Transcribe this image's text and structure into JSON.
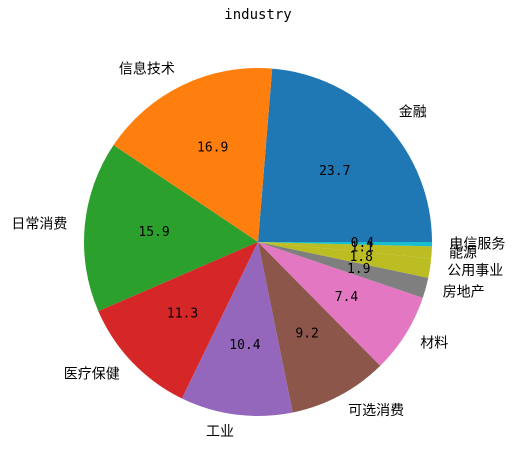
{
  "chart_data": {
    "type": "pie",
    "title": "industry",
    "start_angle_deg": 0,
    "direction": "counterclockwise",
    "slices": [
      {
        "label": "金融",
        "value": 23.7,
        "display": "23.7",
        "color": "#1f77b4"
      },
      {
        "label": "信息技术",
        "value": 16.9,
        "display": "16.9",
        "color": "#ff7f0e"
      },
      {
        "label": "日常消费",
        "value": 15.9,
        "display": "15.9",
        "color": "#2ca02c"
      },
      {
        "label": "医疗保健",
        "value": 11.3,
        "display": "11.3",
        "color": "#d62728"
      },
      {
        "label": "工业",
        "value": 10.4,
        "display": "10.4",
        "color": "#9467bd"
      },
      {
        "label": "可选消费",
        "value": 9.2,
        "display": "9.2",
        "color": "#8c564b"
      },
      {
        "label": "材料",
        "value": 7.4,
        "display": "7.4",
        "color": "#e377c2"
      },
      {
        "label": "房地产",
        "value": 1.9,
        "display": "1.9",
        "color": "#7f7f7f"
      },
      {
        "label": "公用事业",
        "value": 1.8,
        "display": "1.8",
        "color": "#bcbd22"
      },
      {
        "label": "能源",
        "value": 1.1,
        "display": "1.1",
        "color": "#bcbd22"
      },
      {
        "label": "电信服务",
        "value": 0.4,
        "display": "0.4",
        "color": "#17becf"
      }
    ]
  }
}
